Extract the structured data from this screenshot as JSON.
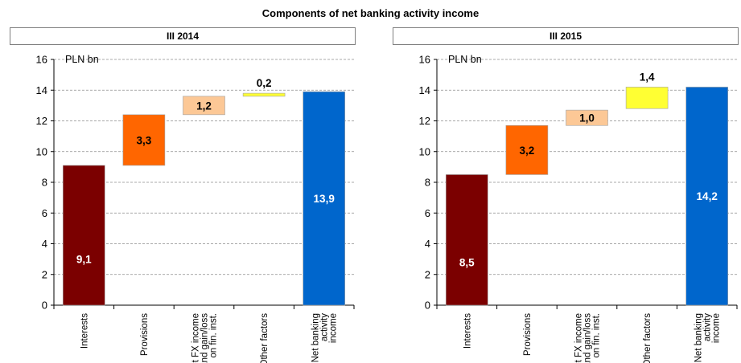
{
  "title": "Components of net banking activity income",
  "chart_data": [
    {
      "type": "bar",
      "subtype": "waterfall",
      "title": "III 2014",
      "unit": "PLN bn",
      "ylim": [
        0,
        16
      ],
      "yticks": [
        0,
        2,
        4,
        6,
        8,
        10,
        12,
        14,
        16
      ],
      "grid": true,
      "categories": [
        "Interests",
        "Provisions",
        "Net FX income and gain/loss on fin. inst.",
        "Other factors",
        "Net banking activity income"
      ],
      "category_lines": [
        [
          "Interests"
        ],
        [
          "Provisions"
        ],
        [
          "Net FX income",
          "and gain/loss",
          "on fin. inst."
        ],
        [
          "Other factors"
        ],
        [
          "Net banking",
          "activity",
          "income"
        ]
      ],
      "bars": [
        {
          "base": 0,
          "value": 9.1,
          "label": "9,1",
          "color": "#7b0000",
          "label_color": "#ffffff",
          "label_pos": "inside-low"
        },
        {
          "base": 9.1,
          "value": 3.3,
          "label": "3,3",
          "color": "#ff6600",
          "label_color": "#000000",
          "label_pos": "inside"
        },
        {
          "base": 12.4,
          "value": 1.2,
          "label": "1,2",
          "color": "#fcc896",
          "label_color": "#000000",
          "label_pos": "inside"
        },
        {
          "base": 13.6,
          "value": 0.2,
          "label": "0,2",
          "color": "#ffff33",
          "label_color": "#000000",
          "label_pos": "above"
        },
        {
          "base": 0,
          "value": 13.9,
          "label": "13,9",
          "color": "#0066cc",
          "label_color": "#ffffff",
          "label_pos": "inside-mid"
        }
      ]
    },
    {
      "type": "bar",
      "subtype": "waterfall",
      "title": "III 2015",
      "unit": "PLN bn",
      "ylim": [
        0,
        16
      ],
      "yticks": [
        0,
        2,
        4,
        6,
        8,
        10,
        12,
        14,
        16
      ],
      "grid": true,
      "categories": [
        "Interests",
        "Provisions",
        "Net FX income and gain/loss on fin. inst.",
        "Other factors",
        "Net banking activity income"
      ],
      "category_lines": [
        [
          "Interests"
        ],
        [
          "Provisions"
        ],
        [
          "Net FX income",
          "and gain/loss",
          "on fin. inst."
        ],
        [
          "Other factors"
        ],
        [
          "Net banking",
          "activity",
          "income"
        ]
      ],
      "bars": [
        {
          "base": 0,
          "value": 8.5,
          "label": "8,5",
          "color": "#7b0000",
          "label_color": "#ffffff",
          "label_pos": "inside-low"
        },
        {
          "base": 8.5,
          "value": 3.2,
          "label": "3,2",
          "color": "#ff6600",
          "label_color": "#000000",
          "label_pos": "inside"
        },
        {
          "base": 11.7,
          "value": 1.0,
          "label": "1,0",
          "color": "#fcc896",
          "label_color": "#000000",
          "label_pos": "inside"
        },
        {
          "base": 12.8,
          "value": 1.4,
          "label": "1,4",
          "color": "#ffff33",
          "label_color": "#000000",
          "label_pos": "above"
        },
        {
          "base": 0,
          "value": 14.2,
          "label": "14,2",
          "color": "#0066cc",
          "label_color": "#ffffff",
          "label_pos": "inside-mid"
        }
      ]
    }
  ]
}
